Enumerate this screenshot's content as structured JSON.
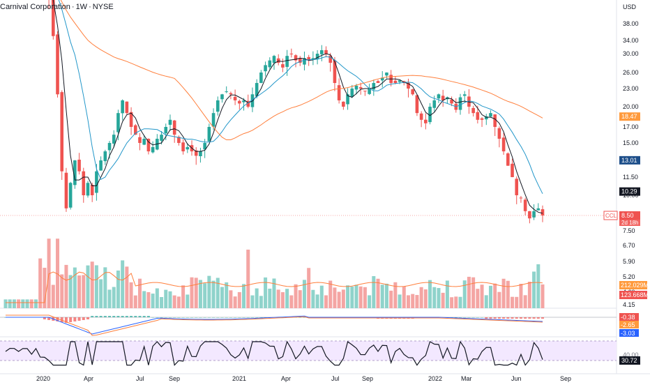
{
  "header": {
    "name": "Carnival Corporation",
    "interval": "1W",
    "exchange": "NYSE"
  },
  "chart_data": {
    "type": "candlestick",
    "symbol": "CCL",
    "currency": "USD",
    "x_ticks": [
      "2020",
      "Apr",
      "Jul",
      "Sep",
      "2021",
      "Apr",
      "Jul",
      "Sep",
      "2022",
      "Mar",
      "Jun",
      "Sep"
    ],
    "y_ticks": [
      "38.00",
      "34.00",
      "30.00",
      "26.00",
      "23.00",
      "20.00",
      "17.00",
      "15.00",
      "13.00",
      "11.50",
      "10.00",
      "8.50",
      "7.50",
      "6.70",
      "5.90",
      "5.20",
      "4.60",
      "4.15"
    ],
    "price_labels": [
      {
        "label": "18.47",
        "value": 18.47,
        "color": "#ff9a3c"
      },
      {
        "label": "13.01",
        "value": 13.01,
        "color": "#1e4f8a"
      },
      {
        "label": "10.29",
        "value": 10.29,
        "color": "#131722"
      },
      {
        "label": "8.50",
        "value": 8.5,
        "color": "#ef5350"
      }
    ],
    "last_badge": {
      "symbol": "CCL",
      "value": "8.50",
      "countdown": "2d 18h"
    },
    "volume_labels": [
      {
        "label": "212.029M",
        "color": "#ff9a3c"
      },
      {
        "label": "123.668M",
        "color": "#ef5350"
      }
    ],
    "macd_labels": [
      {
        "label": "-0.38",
        "color": "#ef5350"
      },
      {
        "label": "-2.65",
        "color": "#ff9a3c"
      },
      {
        "label": "-3.03",
        "color": "#2962ff"
      }
    ],
    "rsi_labels": [
      {
        "label": "40.00",
        "color": "#787b86"
      },
      {
        "label": "30.72",
        "color": "#131722"
      }
    ],
    "close_series": [
      48,
      49,
      50,
      50,
      51,
      52,
      51,
      52,
      50,
      48,
      45,
      35,
      22,
      12,
      9,
      11,
      13,
      12,
      10,
      11,
      10,
      12,
      13,
      14,
      15,
      16,
      19,
      21,
      19,
      17,
      16,
      15,
      15.5,
      14,
      14.5,
      15.5,
      16,
      17,
      18,
      16,
      15,
      14,
      14.5,
      14,
      13.5,
      14,
      15,
      17,
      19,
      21,
      22,
      22.5,
      22,
      21,
      20.5,
      21,
      20,
      22,
      24,
      26,
      27.5,
      28.5,
      29.5,
      28,
      27,
      29.5,
      30,
      28.5,
      28,
      29,
      28.5,
      29,
      30,
      31,
      30,
      28,
      24,
      21,
      20,
      22,
      23,
      23.5,
      23,
      22.5,
      23,
      24,
      24,
      25,
      26,
      24,
      24,
      24.5,
      24,
      23,
      22,
      19,
      18,
      17.5,
      20,
      21,
      22,
      21,
      21.5,
      20.5,
      19.5,
      21.5,
      22,
      20,
      19,
      18,
      18,
      18.5,
      19,
      17,
      15.5,
      14,
      12.5,
      11.5,
      10,
      9.8,
      8.8,
      8.3,
      8.8,
      9.0,
      8.5
    ],
    "candle_series_note": "",
    "ma_fast_end": 10.29,
    "ma_mid_end": 13.01,
    "ma_slow_end": 18.47
  }
}
